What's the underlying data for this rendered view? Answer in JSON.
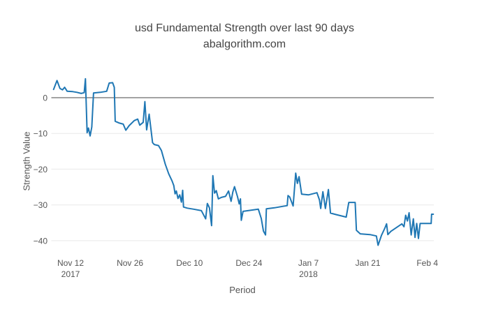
{
  "title": {
    "line1": "usd Fundamental Strength over last 90 days",
    "line2": "abalgorithm.com"
  },
  "colors": {
    "line": "#1f77b4",
    "zero_line": "#444444",
    "grid": "#e9e9e9",
    "text": "#555555",
    "background": "#ffffff"
  },
  "chart_data": {
    "type": "line",
    "title": "usd Fundamental Strength over last 90 days",
    "subtitle": "abalgorithm.com",
    "xlabel": "Period",
    "ylabel": "Strength Value",
    "ylim": [
      -43,
      8
    ],
    "grid": true,
    "zero_line": true,
    "legend_position": "none",
    "line_color": "#1f77b4",
    "x_is": "day offset within the 90-day window; tick positions below map offsets to date labels",
    "x_ticks": [
      {
        "day": 4,
        "label": "Nov 12",
        "sublabel": "2017"
      },
      {
        "day": 18,
        "label": "Nov 26",
        "sublabel": ""
      },
      {
        "day": 32,
        "label": "Dec 10",
        "sublabel": ""
      },
      {
        "day": 46,
        "label": "Dec 24",
        "sublabel": ""
      },
      {
        "day": 60,
        "label": "Jan 7",
        "sublabel": "2018"
      },
      {
        "day": 74,
        "label": "Jan 21",
        "sublabel": ""
      },
      {
        "day": 88,
        "label": "Feb 4",
        "sublabel": ""
      }
    ],
    "y_ticks": [
      {
        "value": 0,
        "label": "0"
      },
      {
        "value": -10,
        "label": "−10"
      },
      {
        "value": -20,
        "label": "−20"
      },
      {
        "value": -30,
        "label": "−30"
      },
      {
        "value": -40,
        "label": "−40"
      }
    ],
    "series": [
      {
        "name": "usd Fundamental Strength",
        "points": [
          [
            0,
            2.3
          ],
          [
            0.8,
            4.8
          ],
          [
            1.5,
            2.6
          ],
          [
            2.1,
            2.2
          ],
          [
            2.6,
            2.9
          ],
          [
            3.2,
            1.8
          ],
          [
            4.5,
            1.7
          ],
          [
            5.5,
            1.5
          ],
          [
            6.5,
            1.2
          ],
          [
            7.2,
            1.4
          ],
          [
            7.5,
            5.3
          ],
          [
            7.9,
            -9.8
          ],
          [
            8.2,
            -8.5
          ],
          [
            8.6,
            -10.7
          ],
          [
            9,
            -8.2
          ],
          [
            9.4,
            1.3
          ],
          [
            11,
            1.5
          ],
          [
            12.5,
            1.8
          ],
          [
            13.1,
            4.1
          ],
          [
            13.9,
            4.2
          ],
          [
            14.3,
            2.9
          ],
          [
            14.5,
            -6.6
          ],
          [
            15.5,
            -7.1
          ],
          [
            16.4,
            -7.4
          ],
          [
            17,
            -9.1
          ],
          [
            17.8,
            -7.8
          ],
          [
            19,
            -6.4
          ],
          [
            19.8,
            -6
          ],
          [
            20.3,
            -7.7
          ],
          [
            21.1,
            -6.9
          ],
          [
            21.5,
            -1.1
          ],
          [
            21.9,
            -9
          ],
          [
            22.5,
            -4.6
          ],
          [
            23.3,
            -12.6
          ],
          [
            23.7,
            -13.1
          ],
          [
            24.7,
            -13.4
          ],
          [
            25.4,
            -14.8
          ],
          [
            26.3,
            -18.6
          ],
          [
            27.1,
            -21.3
          ],
          [
            27.9,
            -23.3
          ],
          [
            28.3,
            -24.6
          ],
          [
            28.6,
            -26.9
          ],
          [
            28.9,
            -26.1
          ],
          [
            29.3,
            -28.2
          ],
          [
            29.7,
            -27.2
          ],
          [
            30.1,
            -29.2
          ],
          [
            30.4,
            -25.9
          ],
          [
            30.6,
            -30.6
          ],
          [
            31.5,
            -30.9
          ],
          [
            33,
            -31.2
          ],
          [
            34.8,
            -31.6
          ],
          [
            35.8,
            -33.9
          ],
          [
            36.2,
            -29.6
          ],
          [
            36.7,
            -30.8
          ],
          [
            37.2,
            -35.8
          ],
          [
            37.5,
            -21.8
          ],
          [
            37.9,
            -26.7
          ],
          [
            38.3,
            -26
          ],
          [
            38.8,
            -28.3
          ],
          [
            39.5,
            -27.9
          ],
          [
            40.5,
            -27.6
          ],
          [
            41.2,
            -26.1
          ],
          [
            41.8,
            -29
          ],
          [
            42.2,
            -26.4
          ],
          [
            42.6,
            -24.9
          ],
          [
            43.3,
            -27.7
          ],
          [
            43.7,
            -29.7
          ],
          [
            44,
            -28.3
          ],
          [
            44.2,
            -34.3
          ],
          [
            44.6,
            -31.8
          ],
          [
            46.5,
            -31.5
          ],
          [
            48.2,
            -31.2
          ],
          [
            48.9,
            -33.8
          ],
          [
            49.4,
            -37.3
          ],
          [
            49.9,
            -38.4
          ],
          [
            50.1,
            -31.1
          ],
          [
            52,
            -30.8
          ],
          [
            54,
            -30.4
          ],
          [
            55,
            -30.2
          ],
          [
            55.2,
            -27.4
          ],
          [
            55.6,
            -27.8
          ],
          [
            56.4,
            -30.3
          ],
          [
            57,
            -21.1
          ],
          [
            57.4,
            -24
          ],
          [
            57.8,
            -22.1
          ],
          [
            58.4,
            -27
          ],
          [
            60,
            -27.2
          ],
          [
            62,
            -26.6
          ],
          [
            62.6,
            -28.6
          ],
          [
            62.9,
            -31
          ],
          [
            63.4,
            -26.3
          ],
          [
            64,
            -31
          ],
          [
            64.7,
            -25.7
          ],
          [
            65.2,
            -32.3
          ],
          [
            66.5,
            -32.7
          ],
          [
            68.9,
            -33.4
          ],
          [
            69.5,
            -29.3
          ],
          [
            71,
            -29.3
          ],
          [
            71.3,
            -37.1
          ],
          [
            72.2,
            -38.1
          ],
          [
            74.5,
            -38.3
          ],
          [
            76,
            -38.7
          ],
          [
            76.4,
            -41.3
          ],
          [
            77.2,
            -38.5
          ],
          [
            78,
            -36.5
          ],
          [
            78.4,
            -35.3
          ],
          [
            78.7,
            -38.3
          ],
          [
            79.4,
            -37.4
          ],
          [
            82,
            -35.3
          ],
          [
            82.5,
            -36.1
          ],
          [
            82.9,
            -32.9
          ],
          [
            83.3,
            -34.5
          ],
          [
            83.7,
            -32.2
          ],
          [
            84.2,
            -38.4
          ],
          [
            84.7,
            -33.9
          ],
          [
            85.1,
            -39.1
          ],
          [
            85.5,
            -35.2
          ],
          [
            85.9,
            -39.4
          ],
          [
            86.3,
            -35.2
          ],
          [
            88.9,
            -35.2
          ],
          [
            89,
            -32.6
          ],
          [
            89.4,
            -32.6
          ]
        ]
      }
    ]
  }
}
